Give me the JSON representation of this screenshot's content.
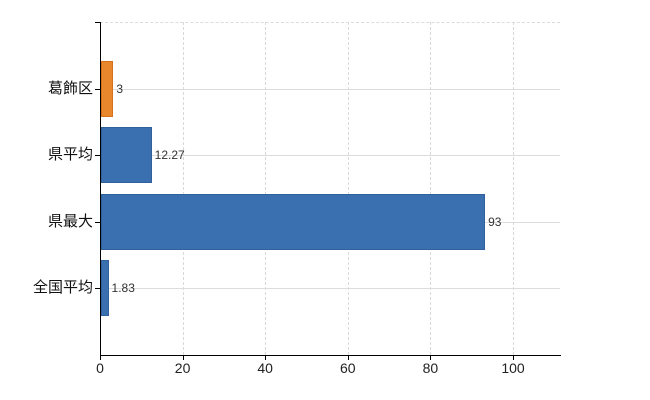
{
  "chart_data": {
    "type": "bar",
    "orientation": "horizontal",
    "title": "",
    "xlabel": "",
    "ylabel": "",
    "categories": [
      "葛飾区",
      "県平均",
      "県最大",
      "全国平均"
    ],
    "values": [
      3,
      12.27,
      93,
      1.83
    ],
    "value_labels": [
      "3",
      "12.27",
      "93",
      "1.83"
    ],
    "bar_colors": [
      "#e8872b",
      "#3a6fb0",
      "#3a6fb0",
      "#3a6fb0"
    ],
    "bar_border_colors": [
      "#d4711c",
      "#30619c",
      "#30619c",
      "#30619c"
    ],
    "highlight_color": "#e8872b",
    "base_color": "#3a6fb0",
    "xlim": [
      0,
      111.4
    ],
    "x_ticks": [
      0,
      20,
      40,
      60,
      80,
      100
    ],
    "x_tick_labels": [
      "0",
      "20",
      "40",
      "60",
      "80",
      "100"
    ],
    "grid": true,
    "legend": false,
    "colors": {
      "axis": "#000000",
      "gridline_h": "#dcdcdc",
      "gridline_v": "#d9d9d9",
      "value_label_text": "#333333",
      "tick_label_text": "#222222",
      "background": "#ffffff"
    }
  }
}
